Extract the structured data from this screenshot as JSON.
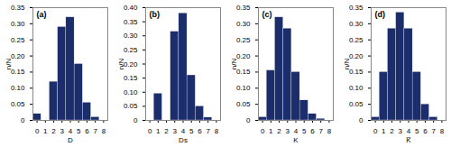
{
  "chart_data": [
    {
      "type": "bar",
      "title": "(a)",
      "x_label": "D",
      "y_label": "n/N",
      "x": [
        0,
        1,
        2,
        3,
        4,
        5,
        6,
        7,
        8
      ],
      "values": [
        0.02,
        0.0,
        0.12,
        0.29,
        0.32,
        0.175,
        0.055,
        0.01,
        0.0
      ],
      "color": "#1c2d6b",
      "xlim": [
        -0.5,
        8.5
      ],
      "xticks": [
        0,
        1,
        2,
        3,
        4,
        5,
        6,
        7,
        8
      ],
      "ylim": [
        0,
        0.35
      ],
      "yticks": [
        0,
        0.05,
        {
          "value": 0.1,
          "label": "0.10"
        },
        0.15,
        {
          "value": 0.2,
          "label": "0.20"
        },
        0.25,
        {
          "value": 0.3,
          "label": "0.30"
        },
        0.35
      ],
      "grid": false
    },
    {
      "type": "bar",
      "title": "(b)",
      "x_label": "Ds",
      "y_label": "n/N",
      "x": [
        0,
        1,
        2,
        3,
        4,
        5,
        6,
        7,
        8
      ],
      "values": [
        0.0,
        0.095,
        0.0,
        0.315,
        0.38,
        0.16,
        0.05,
        0.01,
        0.0
      ],
      "color": "#1c2d6b",
      "xlim": [
        -0.5,
        8.5
      ],
      "xticks": [
        0,
        1,
        2,
        3,
        4,
        5,
        6,
        7,
        8
      ],
      "ylim": [
        0,
        0.4
      ],
      "yticks": [
        0,
        0.05,
        {
          "value": 0.1,
          "label": "0.10"
        },
        0.15,
        {
          "value": 0.2,
          "label": "0.20"
        },
        0.25,
        {
          "value": 0.3,
          "label": "0.30"
        },
        0.35,
        {
          "value": 0.4,
          "label": "0.40"
        }
      ],
      "grid": false
    },
    {
      "type": "bar",
      "title": "(c)",
      "x_label": "K",
      "y_label": "n/N",
      "x": [
        0,
        1,
        2,
        3,
        4,
        5,
        6,
        7,
        8
      ],
      "values": [
        0.01,
        0.155,
        0.32,
        0.285,
        0.15,
        0.062,
        0.02,
        0.005,
        0.0
      ],
      "color": "#1c2d6b",
      "xlim": [
        -0.5,
        8.5
      ],
      "xticks": [
        0,
        1,
        2,
        3,
        4,
        5,
        6,
        7,
        8
      ],
      "ylim": [
        0,
        0.35
      ],
      "yticks": [
        0,
        0.05,
        {
          "value": 0.1,
          "label": "0.10"
        },
        0.15,
        {
          "value": 0.2,
          "label": "0.20"
        },
        0.25,
        {
          "value": 0.3,
          "label": "0.30"
        },
        0.35
      ],
      "grid": false
    },
    {
      "type": "bar",
      "title": "(d)",
      "x_label": "K̅",
      "y_label": "n/N",
      "x": [
        0,
        1,
        2,
        3,
        4,
        5,
        6,
        7,
        8
      ],
      "values": [
        0.01,
        0.15,
        0.285,
        0.335,
        0.285,
        0.15,
        0.05,
        0.01,
        0.0
      ],
      "color": "#1c2d6b",
      "xlim": [
        -0.5,
        8.5
      ],
      "xticks": [
        0,
        1,
        2,
        3,
        4,
        5,
        6,
        7,
        8
      ],
      "ylim": [
        0,
        0.35
      ],
      "yticks": [
        0,
        0.05,
        {
          "value": 0.1,
          "label": "0.10"
        },
        0.15,
        {
          "value": 0.2,
          "label": "0.20"
        },
        0.25,
        {
          "value": 0.3,
          "label": "0.30"
        },
        0.35
      ],
      "grid": false
    }
  ]
}
